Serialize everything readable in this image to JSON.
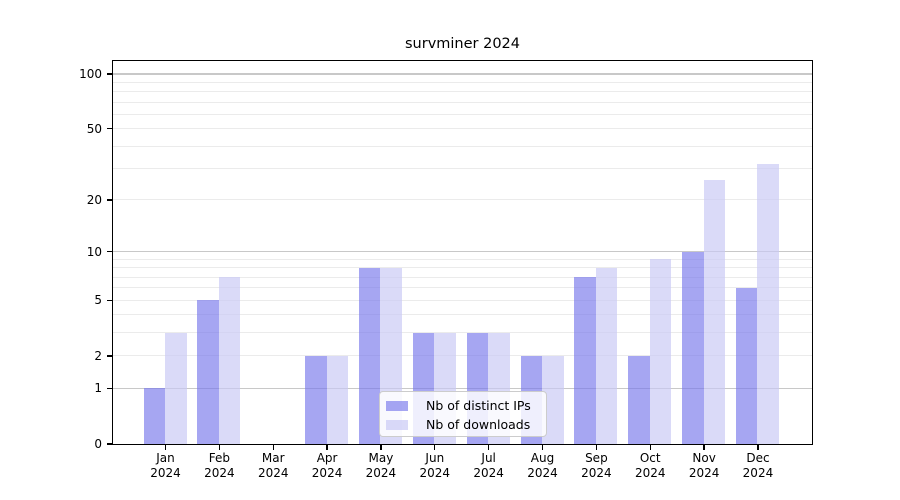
{
  "chart_data": {
    "type": "bar",
    "title": "survminer 2024",
    "categories": [
      "Jan 2024",
      "Feb 2024",
      "Mar 2024",
      "Apr 2024",
      "May 2024",
      "Jun 2024",
      "Jul 2024",
      "Aug 2024",
      "Sep 2024",
      "Oct 2024",
      "Nov 2024",
      "Dec 2024"
    ],
    "series": [
      {
        "name": "Nb of distinct IPs",
        "values": [
          1,
          5,
          0,
          2,
          8,
          3,
          3,
          2,
          7,
          2,
          10,
          6
        ]
      },
      {
        "name": "Nb of downloads",
        "values": [
          3,
          7,
          0,
          2,
          8,
          3,
          3,
          2,
          8,
          9,
          26,
          32
        ]
      }
    ],
    "xlabel": "",
    "ylabel": "",
    "yscale": "log1p",
    "yticks": [
      0,
      1,
      2,
      5,
      10,
      20,
      50,
      100
    ],
    "major_gridlines": [
      1,
      10,
      100
    ],
    "minor_gridlines": [
      2,
      3,
      4,
      5,
      6,
      7,
      8,
      9,
      20,
      30,
      40,
      50,
      60,
      70,
      80,
      90
    ],
    "ylim": [
      0,
      118
    ],
    "grid": "on",
    "legend_position": "bottom-center-inside"
  },
  "colors": {
    "ips_fill": "rgba(118,118,235,0.65)",
    "downloads_fill": "rgba(201,201,244,0.68)",
    "major_grid": "#c8c8c8",
    "minor_grid": "#ebebeb",
    "spine": "#000000",
    "legend_border": "#cccccc"
  }
}
